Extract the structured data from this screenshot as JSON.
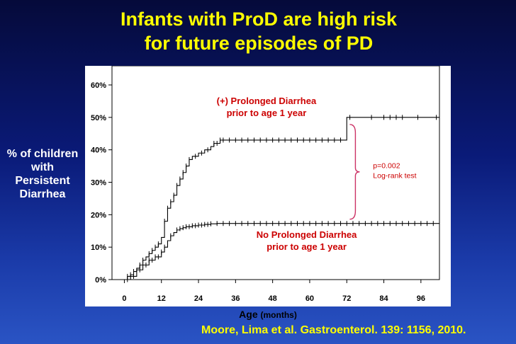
{
  "title": {
    "line1": "Infants with ProD are high risk",
    "line2": "for future episodes of PD"
  },
  "y_label": {
    "line1": "% of children",
    "line2": "with",
    "line3": "Persistent",
    "line4": "Diarrhea"
  },
  "x_label": {
    "main": "Age",
    "unit": "(months)"
  },
  "citation": "Moore, Lima et al.  Gastroenterol. 139: 1156, 2010.",
  "colors": {
    "title": "#ffff00",
    "annotation": "#cc0000",
    "bracket": "#cc3366"
  },
  "chart_data": {
    "type": "line",
    "subtype": "kaplan-meier-step",
    "xlim": [
      -4,
      102
    ],
    "ylim": [
      0,
      60
    ],
    "x_ticks": [
      0,
      12,
      24,
      36,
      48,
      60,
      72,
      84,
      96
    ],
    "y_ticks": [
      0,
      10,
      20,
      30,
      40,
      50,
      60
    ],
    "y_tick_labels": [
      "0%",
      "10%",
      "20%",
      "30%",
      "40%",
      "50%",
      "60%"
    ],
    "series": [
      {
        "name": "(+) Prolonged Diarrhea",
        "label_line1": "(+) Prolonged Diarrhea",
        "label_line2": "prior to age 1 year",
        "x": [
          0,
          1,
          2,
          3,
          4,
          5,
          6,
          7,
          8,
          9,
          10,
          11,
          12,
          13,
          14,
          15,
          16,
          17,
          18,
          19,
          20,
          21,
          22,
          24,
          26,
          28,
          29,
          31,
          72,
          102
        ],
        "y": [
          0,
          1,
          1.5,
          2.5,
          3.5,
          4.5,
          6,
          7,
          8,
          9,
          10,
          11,
          13,
          18,
          22,
          24,
          26,
          29,
          31,
          33,
          35,
          37,
          38,
          39,
          40,
          41,
          42,
          43,
          50,
          50
        ],
        "censor_x": [
          1,
          2,
          3,
          5,
          6,
          8,
          9,
          10,
          11,
          13,
          14,
          15,
          16,
          17,
          18,
          19,
          20,
          21,
          23,
          25,
          27,
          29,
          30,
          31,
          32,
          34,
          36,
          38,
          40,
          42,
          44,
          46,
          48,
          50,
          52,
          54,
          56,
          58,
          60,
          62,
          64,
          66,
          68,
          70,
          73,
          80,
          84,
          86,
          88,
          90,
          95,
          101
        ]
      },
      {
        "name": "No Prolonged Diarrhea",
        "label_line1": "No Prolonged Diarrhea",
        "label_line2": "prior to age 1 year",
        "x": [
          0,
          2,
          4,
          6,
          8,
          10,
          12,
          13,
          14,
          15,
          16,
          17,
          18,
          19,
          20,
          22,
          24,
          26,
          28,
          30,
          102
        ],
        "y": [
          0,
          1,
          3,
          4.5,
          6,
          7,
          8.5,
          10,
          12,
          13.5,
          14.5,
          15.3,
          15.7,
          16,
          16.3,
          16.6,
          16.8,
          17,
          17.2,
          17.3,
          17.3
        ],
        "censor_x": [
          1,
          3,
          5,
          7,
          8,
          9,
          10,
          11,
          12,
          13,
          15,
          17,
          18,
          19,
          20,
          21,
          22,
          23,
          24,
          25,
          26,
          27,
          28,
          30,
          32,
          34,
          36,
          38,
          40,
          42,
          44,
          46,
          48,
          50,
          52,
          54,
          56,
          58,
          60,
          62,
          64,
          66,
          68,
          70,
          72,
          74,
          76,
          78,
          80,
          82,
          84,
          86,
          88,
          90,
          92,
          94,
          96,
          98,
          100
        ]
      }
    ],
    "annotation": {
      "line1": "p=0.002",
      "line2": "Log-rank test"
    }
  }
}
